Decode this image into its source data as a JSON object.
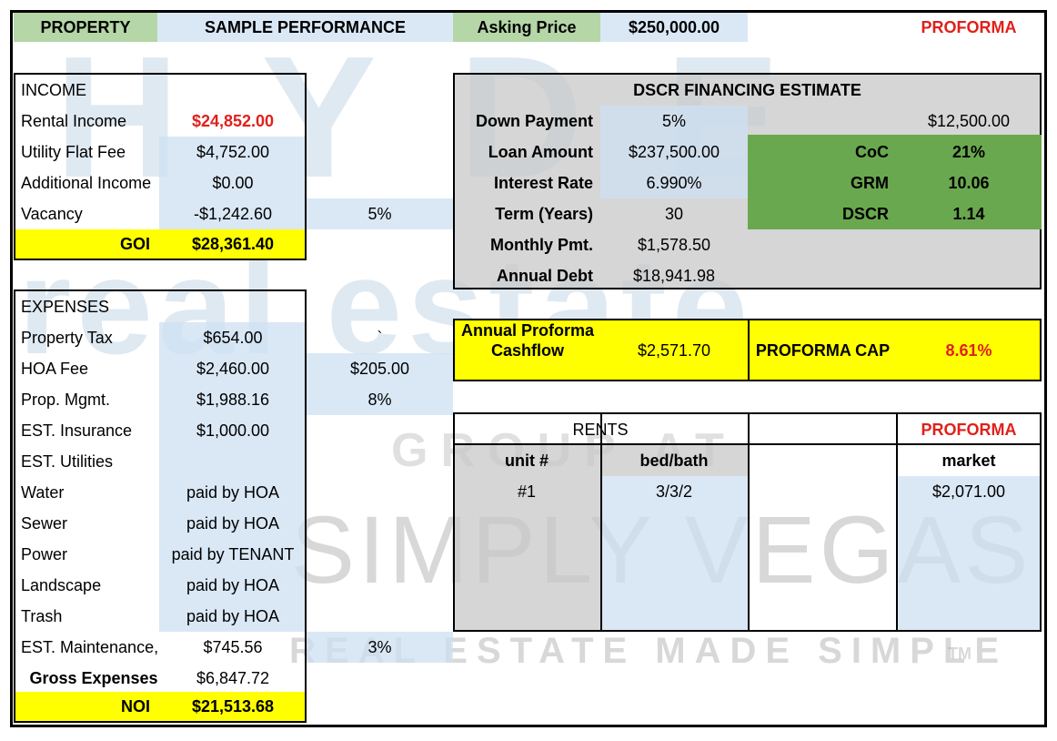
{
  "header": {
    "property_label": "PROPERTY",
    "property_name": "SAMPLE PERFORMANCE",
    "asking_price_label": "Asking Price",
    "asking_price": "$250,000.00",
    "status": "PROFORMA"
  },
  "income": {
    "title": "INCOME",
    "rows": [
      [
        "Rental Income",
        "$24,852.00"
      ],
      [
        "Utility Flat Fee",
        "$4,752.00"
      ],
      [
        "Additional Income",
        "$0.00"
      ],
      [
        "Vacancy",
        "-$1,242.60",
        "5%"
      ]
    ],
    "total": [
      "GOI",
      "$28,361.40"
    ]
  },
  "expenses": {
    "title": "EXPENSES",
    "rows": [
      [
        "Property Tax",
        "$654.00",
        "`"
      ],
      [
        "HOA Fee",
        "$2,460.00",
        "$205.00"
      ],
      [
        "Prop. Mgmt.",
        "$1,988.16",
        "8%"
      ],
      [
        "EST. Insurance",
        "$1,000.00"
      ],
      [
        "EST. Utilities"
      ],
      [
        "Water",
        "paid by HOA"
      ],
      [
        "Sewer",
        "paid by HOA"
      ],
      [
        "Power",
        "paid by TENANT"
      ],
      [
        "Landscape",
        "paid by HOA"
      ],
      [
        "Trash",
        "paid by HOA"
      ],
      [
        "EST. Maintenance,",
        "$745.56",
        "3%"
      ]
    ],
    "gross": [
      "Gross Expenses",
      "$6,847.72"
    ],
    "total": [
      "NOI",
      "$21,513.68"
    ]
  },
  "financing": {
    "title": "DSCR FINANCING ESTIMATE",
    "rows": [
      [
        "Down Payment",
        "5%",
        "$12,500.00"
      ],
      [
        "Loan Amount",
        "$237,500.00"
      ],
      [
        "Interest Rate",
        "6.990%"
      ],
      [
        "Term (Years)",
        "30"
      ],
      [
        "Monthly Pmt.",
        "$1,578.50"
      ],
      [
        "Annual Debt",
        "$18,941.98"
      ]
    ],
    "metrics": [
      [
        "CoC",
        "21%"
      ],
      [
        "GRM",
        "10.06"
      ],
      [
        "DSCR",
        "1.14"
      ]
    ]
  },
  "cashflow": {
    "label": "Annual Proforma Cashflow",
    "value": "$2,571.70",
    "cap_label": "PROFORMA CAP",
    "cap_value": "8.61%"
  },
  "rents": {
    "title": "RENTS",
    "status": "PROFORMA",
    "columns": [
      "unit #",
      "bed/bath",
      "market"
    ],
    "rows": [
      [
        "#1",
        "3/3/2",
        "$2,071.00"
      ]
    ]
  },
  "watermark": {
    "brand": "HYDE",
    "line2": "real estate",
    "line3": "GROUP AT",
    "line4": "SIMPLY VEGAS",
    "tagline": "REAL ESTATE MADE SIMPLE",
    "tm": "TM"
  }
}
